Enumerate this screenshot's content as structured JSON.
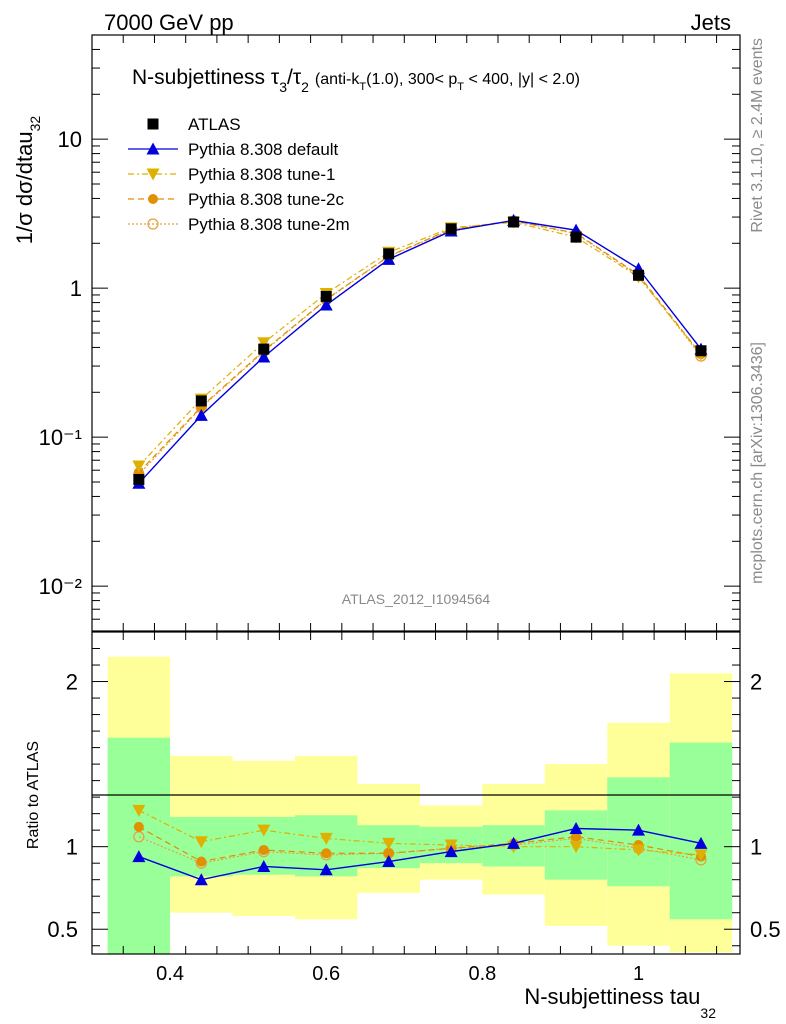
{
  "header": {
    "left": "7000 GeV pp",
    "right": "Jets"
  },
  "plot_title": {
    "main": "N-subjettiness τ",
    "main_sub3": "3",
    "slash": "/τ",
    "main_sub2": "2",
    "cuts_a": "(anti-k",
    "cuts_sub_t1": "T",
    "cuts_b": "(1.0), 300< p",
    "cuts_sub_t2": "T",
    "cuts_c": " < 400, |y| < 2.0)"
  },
  "side_text": {
    "rivet": "Rivet 3.1.10, ≥ 2.4M events",
    "mcplots": "mcplots.cern.ch [arXiv:1306.3436]"
  },
  "analysis_id": "ATLAS_2012_I1094564",
  "axes": {
    "ylabel_main": "1/σ dσ/dtau",
    "ylabel_main_sub": "32",
    "ylabel_ratio": "Ratio to ATLAS",
    "xlabel": "N-subjettiness tau",
    "xlabel_sub": "32"
  },
  "colors": {
    "data": "#000000",
    "default": "#0000dd",
    "tune1": "#e0b000",
    "tune2c": "#e09000",
    "tune2m": "#e8a040",
    "band_inner": "#99ff99",
    "band_outer": "#ffff99"
  },
  "chart_data": [
    {
      "type": "line",
      "panel": "main",
      "xlim": [
        0.3,
        1.13
      ],
      "ylim": [
        0.005,
        50
      ],
      "yscale": "log",
      "x_ticks": [
        0.4,
        0.6,
        0.8,
        1.0
      ],
      "y_tick_labels": [
        "10⁻²",
        "10⁻¹",
        "1",
        "10"
      ],
      "x_bins": [
        [
          0.32,
          0.4
        ],
        [
          0.4,
          0.48
        ],
        [
          0.48,
          0.56
        ],
        [
          0.56,
          0.64
        ],
        [
          0.64,
          0.72
        ],
        [
          0.72,
          0.8
        ],
        [
          0.8,
          0.88
        ],
        [
          0.88,
          0.96
        ],
        [
          0.96,
          1.04
        ],
        [
          1.04,
          1.12
        ]
      ],
      "x": [
        0.36,
        0.44,
        0.52,
        0.6,
        0.68,
        0.76,
        0.84,
        0.92,
        1.0,
        1.08
      ],
      "series": [
        {
          "name": "ATLAS",
          "key": "data",
          "marker": "square",
          "values": [
            0.052,
            0.175,
            0.39,
            0.88,
            1.7,
            2.5,
            2.78,
            2.2,
            1.22,
            0.38
          ]
        },
        {
          "name": "Pythia 8.308 default",
          "key": "default",
          "marker": "triangle-up",
          "values": [
            0.049,
            0.14,
            0.345,
            0.77,
            1.56,
            2.42,
            2.85,
            2.45,
            1.35,
            0.39
          ]
        },
        {
          "name": "Pythia 8.308 tune-1",
          "key": "tune1",
          "marker": "triangle-down",
          "values": [
            0.064,
            0.18,
            0.43,
            0.92,
            1.74,
            2.54,
            2.77,
            2.2,
            1.19,
            0.36
          ]
        },
        {
          "name": "Pythia 8.308 tune-2c",
          "key": "tune2c",
          "marker": "circle",
          "values": [
            0.058,
            0.16,
            0.38,
            0.84,
            1.64,
            2.49,
            2.83,
            2.34,
            1.23,
            0.36
          ]
        },
        {
          "name": "Pythia 8.308 tune-2m",
          "key": "tune2m",
          "marker": "open-circle",
          "values": [
            0.056,
            0.158,
            0.375,
            0.835,
            1.63,
            2.47,
            2.82,
            2.32,
            1.21,
            0.35
          ]
        }
      ]
    },
    {
      "type": "line",
      "panel": "ratio",
      "xlim": [
        0.3,
        1.13
      ],
      "ylim": [
        0.35,
        2.3
      ],
      "y_ticks": [
        0.5,
        1,
        2
      ],
      "y_tick_labels": [
        "0.5",
        "1",
        "2"
      ],
      "x_tick_labels": [
        "0.4",
        "0.6",
        "0.8",
        "1"
      ],
      "band_inner": [
        [
          0.32,
          1.66
        ],
        [
          0.82,
          1.18
        ],
        [
          0.83,
          1.18
        ],
        [
          0.82,
          1.19
        ],
        [
          0.87,
          1.13
        ],
        [
          0.9,
          1.12
        ],
        [
          0.88,
          1.13
        ],
        [
          0.8,
          1.22
        ],
        [
          0.76,
          1.42
        ],
        [
          0.56,
          1.63
        ]
      ],
      "band_outer": [
        [
          0.32,
          2.15
        ],
        [
          0.6,
          1.55
        ],
        [
          0.58,
          1.52
        ],
        [
          0.56,
          1.55
        ],
        [
          0.72,
          1.38
        ],
        [
          0.8,
          1.25
        ],
        [
          0.71,
          1.38
        ],
        [
          0.52,
          1.5
        ],
        [
          0.4,
          1.75
        ],
        [
          0.36,
          2.05
        ]
      ],
      "series": [
        {
          "name": "Pythia 8.308 default",
          "key": "default",
          "marker": "triangle-up",
          "values": [
            0.94,
            0.8,
            0.88,
            0.86,
            0.91,
            0.97,
            1.02,
            1.11,
            1.1,
            1.02
          ]
        },
        {
          "name": "Pythia 8.308 tune-1",
          "key": "tune1",
          "marker": "triangle-down",
          "values": [
            1.22,
            1.03,
            1.1,
            1.05,
            1.02,
            1.01,
            1.0,
            1.0,
            0.98,
            0.95
          ]
        },
        {
          "name": "Pythia 8.308 tune-2c",
          "key": "tune2c",
          "marker": "circle",
          "values": [
            1.12,
            0.91,
            0.98,
            0.96,
            0.96,
            0.99,
            1.02,
            1.06,
            1.01,
            0.94
          ]
        },
        {
          "name": "Pythia 8.308 tune-2m",
          "key": "tune2m",
          "marker": "open-circle",
          "values": [
            1.06,
            0.9,
            0.97,
            0.95,
            0.96,
            0.99,
            1.01,
            1.05,
            0.99,
            0.92
          ]
        }
      ]
    }
  ]
}
